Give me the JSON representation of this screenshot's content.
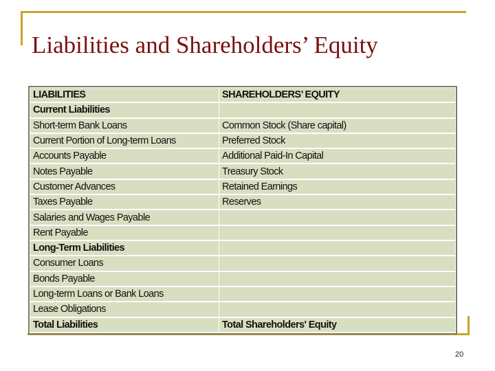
{
  "slide": {
    "title": "Liabilities and Shareholders’ Equity",
    "page_number": "20",
    "colors": {
      "title": "#7a1010",
      "accent": "#c8a42a",
      "table_bg": "#d8dec0"
    }
  },
  "table": {
    "header": {
      "left": "LIABILITIES",
      "right": "SHAREHOLDERS’ EQUITY"
    },
    "rows": [
      {
        "left": "Current Liabilities",
        "left_bold": true,
        "right": ""
      },
      {
        "left": "Short-term Bank Loans",
        "right": "Common Stock (Share capital)"
      },
      {
        "left": "Current Portion of Long-term Loans",
        "right": "Preferred Stock"
      },
      {
        "left": "Accounts Payable",
        "right": "Additional Paid-In Capital"
      },
      {
        "left": "Notes Payable",
        "right": "Treasury Stock"
      },
      {
        "left": "Customer Advances",
        "right": "Retained Earnings"
      },
      {
        "left": "Taxes Payable",
        "right": "Reserves"
      },
      {
        "left": "Salaries and Wages Payable",
        "right": ""
      },
      {
        "left": "Rent Payable",
        "right": ""
      },
      {
        "left": "Long-Term Liabilities",
        "left_bold": true,
        "right": ""
      },
      {
        "left": "Consumer Loans",
        "right": ""
      },
      {
        "left": "Bonds Payable",
        "right": ""
      },
      {
        "left": "Long-term Loans or Bank Loans",
        "right": ""
      },
      {
        "left": "Lease Obligations",
        "right": ""
      },
      {
        "left": "Total Liabilities",
        "left_bold": true,
        "right": "Total Shareholders' Equity",
        "right_bold": true
      }
    ]
  }
}
